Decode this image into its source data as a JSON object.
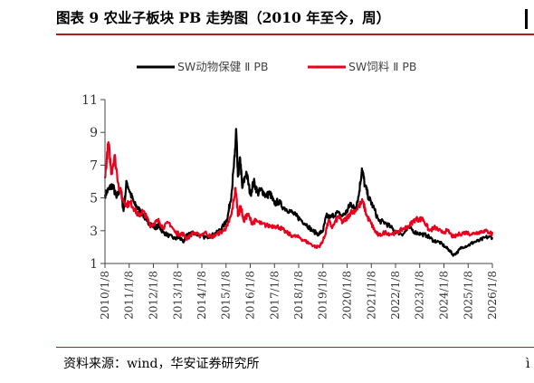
{
  "header": {
    "title": "图表 9  农业子板块 PB 走势图（2010 年至今，周）"
  },
  "footer": {
    "source": "资料来源：wind，华安证券研究所",
    "edge_text": "ì"
  },
  "colors": {
    "black_series": "#000000",
    "red_series": "#e8001c",
    "title_rule": "#b31a1a",
    "axis": "#444444"
  },
  "chart_data": {
    "type": "line",
    "title": "",
    "xlabel": "",
    "ylabel": "",
    "ylim": [
      1,
      11
    ],
    "yticks": [
      1,
      3,
      5,
      7,
      9,
      11
    ],
    "x_start": "2010/1/8",
    "x_end": "2026/1/8",
    "xticks": [
      "2010/1/8",
      "2011/1/8",
      "2012/1/8",
      "2013/1/8",
      "2014/1/8",
      "2015/1/8",
      "2016/1/8",
      "2017/1/8",
      "2018/1/8",
      "2019/1/8",
      "2020/1/8",
      "2021/1/8",
      "2022/1/8",
      "2023/1/8",
      "2024/1/8",
      "2025/1/8",
      "2026/1/8"
    ],
    "legend_position": "top-center",
    "grid": false,
    "series": [
      {
        "name": "SW动物保健 Ⅱ PB",
        "color": "#000000",
        "points": [
          [
            "2010/1/8",
            5.2
          ],
          [
            "2010/3/1",
            5.5
          ],
          [
            "2010/5/1",
            5.8
          ],
          [
            "2010/7/1",
            5.0
          ],
          [
            "2010/9/1",
            5.6
          ],
          [
            "2010/10/15",
            4.2
          ],
          [
            "2010/12/1",
            6.0
          ],
          [
            "2011/2/1",
            5.2
          ],
          [
            "2011/4/1",
            4.6
          ],
          [
            "2011/6/1",
            4.3
          ],
          [
            "2011/8/1",
            4.0
          ],
          [
            "2011/10/1",
            3.6
          ],
          [
            "2011/12/1",
            3.4
          ],
          [
            "2012/2/1",
            3.2
          ],
          [
            "2012/4/1",
            3.3
          ],
          [
            "2012/6/1",
            2.9
          ],
          [
            "2012/9/1",
            2.7
          ],
          [
            "2012/12/1",
            2.5
          ],
          [
            "2013/2/1",
            2.6
          ],
          [
            "2013/4/1",
            2.3
          ],
          [
            "2013/6/1",
            2.8
          ],
          [
            "2013/9/1",
            2.9
          ],
          [
            "2013/12/1",
            2.7
          ],
          [
            "2014/3/1",
            2.6
          ],
          [
            "2014/6/1",
            2.7
          ],
          [
            "2014/9/1",
            2.9
          ],
          [
            "2014/12/1",
            3.3
          ],
          [
            "2015/2/1",
            3.8
          ],
          [
            "2015/4/1",
            5.3
          ],
          [
            "2015/5/20",
            7.5
          ],
          [
            "2015/6/10",
            9.2
          ],
          [
            "2015/7/5",
            6.3
          ],
          [
            "2015/8/10",
            7.4
          ],
          [
            "2015/9/10",
            5.6
          ],
          [
            "2015/11/10",
            6.6
          ],
          [
            "2016/1/10",
            5.2
          ],
          [
            "2016/3/1",
            6.0
          ],
          [
            "2016/5/1",
            5.3
          ],
          [
            "2016/7/1",
            5.5
          ],
          [
            "2016/9/1",
            5.1
          ],
          [
            "2016/11/1",
            5.3
          ],
          [
            "2017/1/10",
            4.6
          ],
          [
            "2017/3/1",
            4.8
          ],
          [
            "2017/6/1",
            4.4
          ],
          [
            "2017/9/1",
            4.2
          ],
          [
            "2017/12/1",
            3.9
          ],
          [
            "2018/2/1",
            3.7
          ],
          [
            "2018/5/1",
            3.4
          ],
          [
            "2018/8/1",
            3.0
          ],
          [
            "2018/11/1",
            2.8
          ],
          [
            "2019/1/10",
            3.0
          ],
          [
            "2019/3/1",
            3.9
          ],
          [
            "2019/5/1",
            3.8
          ],
          [
            "2019/8/1",
            4.1
          ],
          [
            "2019/11/1",
            3.9
          ],
          [
            "2020/1/10",
            4.2
          ],
          [
            "2020/3/1",
            4.7
          ],
          [
            "2020/5/1",
            4.3
          ],
          [
            "2020/7/1",
            5.1
          ],
          [
            "2020/8/20",
            6.8
          ],
          [
            "2020/10/1",
            5.8
          ],
          [
            "2020/12/1",
            5.0
          ],
          [
            "2021/2/1",
            4.5
          ],
          [
            "2021/5/1",
            3.6
          ],
          [
            "2021/8/1",
            3.5
          ],
          [
            "2021/11/1",
            3.2
          ],
          [
            "2022/2/1",
            2.9
          ],
          [
            "2022/5/1",
            2.8
          ],
          [
            "2022/8/1",
            3.2
          ],
          [
            "2022/11/1",
            2.9
          ],
          [
            "2023/2/1",
            2.8
          ],
          [
            "2023/5/1",
            2.7
          ],
          [
            "2023/8/1",
            2.4
          ],
          [
            "2023/11/1",
            2.3
          ],
          [
            "2024/2/1",
            2.0
          ],
          [
            "2024/4/1",
            1.8
          ],
          [
            "2024/6/1",
            1.5
          ],
          [
            "2024/8/1",
            1.7
          ],
          [
            "2024/10/1",
            2.0
          ],
          [
            "2025/1/8",
            2.1
          ],
          [
            "2025/4/1",
            2.3
          ],
          [
            "2025/7/1",
            2.4
          ],
          [
            "2025/10/1",
            2.6
          ],
          [
            "2026/1/8",
            2.6
          ]
        ]
      },
      {
        "name": "SW饲料 Ⅱ PB",
        "color": "#e8001c",
        "points": [
          [
            "2010/1/8",
            6.2
          ],
          [
            "2010/3/1",
            8.4
          ],
          [
            "2010/4/15",
            6.5
          ],
          [
            "2010/6/1",
            7.6
          ],
          [
            "2010/8/1",
            5.8
          ],
          [
            "2010/10/1",
            4.9
          ],
          [
            "2010/12/1",
            4.6
          ],
          [
            "2011/2/1",
            4.7
          ],
          [
            "2011/4/1",
            4.3
          ],
          [
            "2011/6/1",
            3.9
          ],
          [
            "2011/8/1",
            4.2
          ],
          [
            "2011/10/1",
            3.8
          ],
          [
            "2011/12/1",
            3.3
          ],
          [
            "2012/2/1",
            3.5
          ],
          [
            "2012/4/1",
            3.6
          ],
          [
            "2012/6/1",
            3.2
          ],
          [
            "2012/9/1",
            3.5
          ],
          [
            "2012/12/1",
            2.9
          ],
          [
            "2013/2/1",
            2.8
          ],
          [
            "2013/4/1",
            2.8
          ],
          [
            "2013/6/1",
            2.5
          ],
          [
            "2013/9/1",
            2.9
          ],
          [
            "2013/12/1",
            2.7
          ],
          [
            "2014/3/1",
            2.9
          ],
          [
            "2014/6/1",
            2.6
          ],
          [
            "2014/9/1",
            2.8
          ],
          [
            "2014/12/1",
            3.0
          ],
          [
            "2015/2/1",
            3.3
          ],
          [
            "2015/4/1",
            4.0
          ],
          [
            "2015/6/1",
            5.6
          ],
          [
            "2015/7/10",
            3.9
          ],
          [
            "2015/8/20",
            4.5
          ],
          [
            "2015/10/1",
            3.6
          ],
          [
            "2015/12/1",
            4.0
          ],
          [
            "2016/2/1",
            3.5
          ],
          [
            "2016/4/1",
            3.6
          ],
          [
            "2016/7/1",
            3.4
          ],
          [
            "2016/10/1",
            3.3
          ],
          [
            "2017/1/10",
            3.3
          ],
          [
            "2017/4/1",
            3.2
          ],
          [
            "2017/7/1",
            2.9
          ],
          [
            "2017/10/1",
            2.7
          ],
          [
            "2018/1/10",
            2.6
          ],
          [
            "2018/4/1",
            2.4
          ],
          [
            "2018/7/1",
            2.2
          ],
          [
            "2018/10/1",
            2.0
          ],
          [
            "2018/12/1",
            2.1
          ],
          [
            "2019/2/1",
            2.6
          ],
          [
            "2019/4/1",
            3.6
          ],
          [
            "2019/6/1",
            3.2
          ],
          [
            "2019/9/1",
            3.9
          ],
          [
            "2019/11/1",
            3.5
          ],
          [
            "2020/1/10",
            3.8
          ],
          [
            "2020/3/1",
            4.1
          ],
          [
            "2020/6/1",
            4.3
          ],
          [
            "2020/9/1",
            4.8
          ],
          [
            "2020/11/1",
            3.9
          ],
          [
            "2021/1/10",
            3.4
          ],
          [
            "2021/3/1",
            3.0
          ],
          [
            "2021/5/1",
            2.7
          ],
          [
            "2021/8/1",
            2.9
          ],
          [
            "2021/11/1",
            2.8
          ],
          [
            "2022/2/1",
            2.9
          ],
          [
            "2022/5/1",
            3.1
          ],
          [
            "2022/8/1",
            3.3
          ],
          [
            "2022/11/1",
            3.7
          ],
          [
            "2023/1/8",
            3.7
          ],
          [
            "2023/3/1",
            3.7
          ],
          [
            "2023/6/1",
            3.0
          ],
          [
            "2023/9/1",
            3.2
          ],
          [
            "2023/12/1",
            2.9
          ],
          [
            "2024/3/1",
            3.0
          ],
          [
            "2024/6/1",
            2.6
          ],
          [
            "2024/9/1",
            2.8
          ],
          [
            "2024/12/1",
            2.9
          ],
          [
            "2025/3/1",
            2.8
          ],
          [
            "2025/6/1",
            2.9
          ],
          [
            "2025/9/1",
            3.0
          ],
          [
            "2025/12/1",
            2.9
          ],
          [
            "2026/1/8",
            2.8
          ]
        ]
      }
    ]
  }
}
